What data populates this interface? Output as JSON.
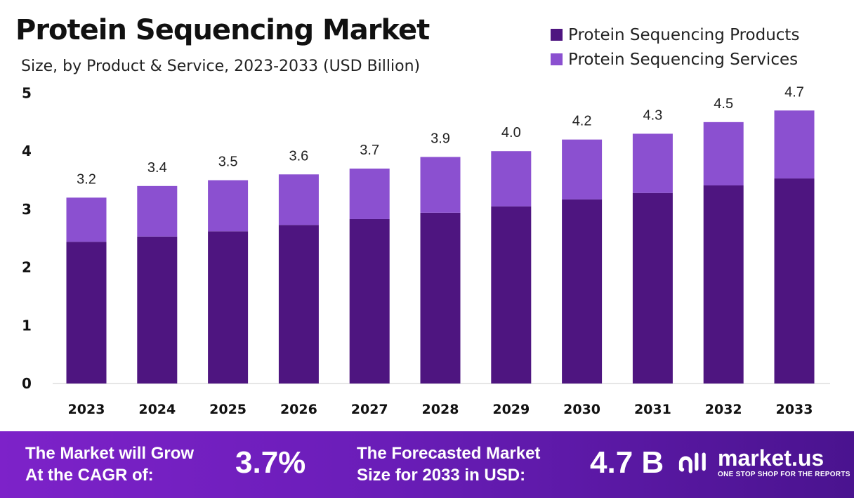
{
  "chart_data": {
    "type": "bar",
    "stacked": true,
    "title": "Protein Sequencing Market",
    "subtitle": "Size, by Product & Service, 2023-2033 (USD Billion)",
    "categories": [
      "2023",
      "2024",
      "2025",
      "2026",
      "2027",
      "2028",
      "2029",
      "2030",
      "2031",
      "2032",
      "2033"
    ],
    "series": [
      {
        "name": "Protein Sequencing Products",
        "color": "#4e1580",
        "values": [
          2.44,
          2.53,
          2.62,
          2.73,
          2.83,
          2.94,
          3.05,
          3.17,
          3.28,
          3.41,
          3.53
        ]
      },
      {
        "name": "Protein Sequencing Services",
        "color": "#8b50d0",
        "values": [
          0.76,
          0.87,
          0.88,
          0.87,
          0.87,
          0.96,
          0.95,
          1.03,
          1.02,
          1.09,
          1.17
        ]
      }
    ],
    "totals_labels": [
      "3.2",
      "3.4",
      "3.5",
      "3.6",
      "3.7",
      "3.9",
      "4.0",
      "4.2",
      "4.3",
      "4.5",
      "4.7"
    ],
    "totals": [
      3.2,
      3.4,
      3.5,
      3.6,
      3.7,
      3.9,
      4.0,
      4.2,
      4.3,
      4.5,
      4.7
    ],
    "yticks": [
      "0",
      "1",
      "2",
      "3",
      "4",
      "5"
    ],
    "ylim": [
      0,
      5
    ],
    "grid": false,
    "legend_position": "top-right",
    "xlabel": "",
    "ylabel": ""
  },
  "footer": {
    "cagr_text_1": "The Market will Grow",
    "cagr_text_2": "At the CAGR of:",
    "cagr_value": "3.7%",
    "forecast_text_1": "The Forecasted Market",
    "forecast_text_2": "Size for 2033 in USD:",
    "forecast_value": "4.7 B",
    "logo_name": "market.us",
    "logo_tagline": "ONE STOP SHOP FOR THE REPORTS"
  }
}
